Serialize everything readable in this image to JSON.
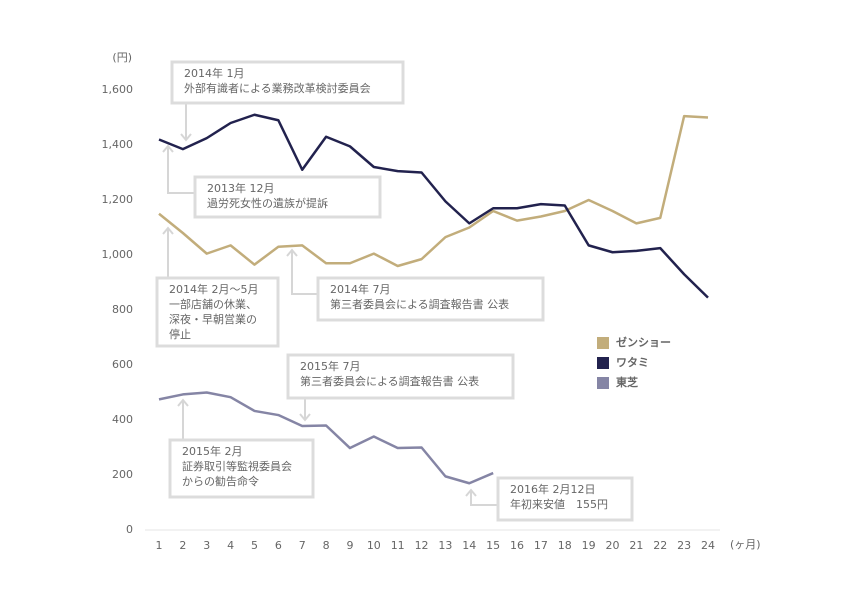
{
  "chart_data": {
    "type": "line",
    "y_unit": "(円)",
    "x_unit": "(ヶ月)",
    "x": [
      1,
      2,
      3,
      4,
      5,
      6,
      7,
      8,
      9,
      10,
      11,
      12,
      13,
      14,
      15,
      16,
      17,
      18,
      19,
      20,
      21,
      22,
      23,
      24
    ],
    "xlim": [
      1,
      24
    ],
    "ylim": [
      0,
      1600
    ],
    "yticks": [
      0,
      200,
      400,
      600,
      800,
      {
        "value": 1000,
        "label": "1,000"
      },
      {
        "value": 1200,
        "label": "1,200"
      },
      {
        "value": 1400,
        "label": "1,400"
      },
      {
        "value": 1600,
        "label": "1,600"
      }
    ],
    "grid": false,
    "legend": "right",
    "series": [
      {
        "name": "ゼンショー",
        "color": "#c2ad7b",
        "values": [
          1150,
          1080,
          1005,
          1035,
          965,
          1030,
          1035,
          970,
          970,
          1005,
          960,
          985,
          1065,
          1100,
          1160,
          1125,
          1140,
          1160,
          1200,
          1160,
          1115,
          1135,
          1505,
          1500
        ]
      },
      {
        "name": "ワタミ",
        "color": "#22224e",
        "values": [
          1420,
          1385,
          1425,
          1480,
          1510,
          1490,
          1310,
          1430,
          1395,
          1320,
          1305,
          1300,
          1195,
          1115,
          1170,
          1170,
          1185,
          1180,
          1035,
          1010,
          1015,
          1025,
          930,
          845
        ]
      },
      {
        "name": "東芝",
        "color": "#8585a5",
        "values": [
          475,
          493,
          500,
          483,
          433,
          418,
          378,
          380,
          298,
          340,
          298,
          300,
          195,
          170,
          207,
          null,
          null,
          null,
          null,
          null,
          null,
          null,
          null,
          null
        ]
      }
    ],
    "annotations": [
      {
        "lines": [
          "2014年 1月",
          "外部有識者による業務改革検討委員会"
        ]
      },
      {
        "lines": [
          "2013年 12月",
          "過労死女性の遺族が提訴"
        ]
      },
      {
        "lines": [
          "2014年 2月～5月",
          "一部店舗の休業、",
          "深夜・早朝営業の",
          "停止"
        ]
      },
      {
        "lines": [
          "2014年 7月",
          "第三者委員会による調査報告書  公表"
        ]
      },
      {
        "lines": [
          "2015年 7月",
          "第三者委員会による調査報告書  公表"
        ]
      },
      {
        "lines": [
          "2015年 2月",
          "証券取引等監視委員会",
          "からの勧告命令"
        ]
      },
      {
        "lines": [
          "2016年 2月12日",
          "年初来安値　155円"
        ]
      }
    ]
  }
}
